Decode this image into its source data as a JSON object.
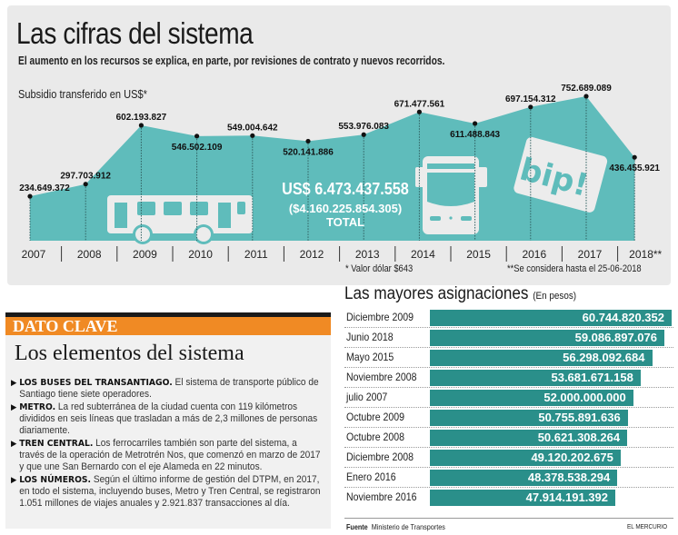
{
  "header": {
    "title": "Las cifras del sistema",
    "subtitle": "El aumento en los recursos se explica, en parte, por revisiones de contrato y nuevos recorridos."
  },
  "chart_data": [
    {
      "type": "area",
      "title": "Subsidio transferido en US$*",
      "xlabel": "",
      "ylabel": "US$",
      "categories": [
        "2007",
        "2008",
        "2009",
        "2010",
        "2011",
        "2012",
        "2013",
        "2014",
        "2015",
        "2016",
        "2017",
        "2018**"
      ],
      "values": [
        234649372,
        297703912,
        602193827,
        546502109,
        549004642,
        520141886,
        553976083,
        671477561,
        611488843,
        697154312,
        752689089,
        436455921
      ],
      "value_labels": [
        "234.649.372",
        "297.703.912",
        "602.193.827",
        "546.502.109",
        "549.004.642",
        "520.141.886",
        "553.976.083",
        "671.477.561",
        "611.488.843",
        "697.154.312",
        "752.689.089",
        "436.455.921"
      ],
      "series_color": "#5fbcbb",
      "grid": false,
      "total": {
        "usd": "US$ 6.473.437.558",
        "clp": "($4.160.225.854.305)",
        "label": "TOTAL"
      },
      "footnotes": [
        "* Valor dólar $643",
        "**Se considera hasta el 25-06-2018"
      ],
      "icons": [
        "bus-side-icon",
        "bus-front-icon",
        "bip-card-icon"
      ],
      "bip_card_text": "bip!"
    },
    {
      "type": "bar",
      "title": "Las mayores asignaciones",
      "title_note": "(En pesos)",
      "categories": [
        "Diciembre 2009",
        "Junio 2018",
        "Mayo 2015",
        "Noviembre 2008",
        "julio 2007",
        "Octubre 2009",
        "Octubre 2008",
        "Diciembre 2008",
        "Enero 2016",
        "Noviembre 2016"
      ],
      "values": [
        60744820352,
        59086897076,
        56298092684,
        53681671158,
        52000000000,
        50755891636,
        50621308264,
        49120202675,
        48378538294,
        47914191392
      ],
      "value_labels": [
        "60.744.820.352",
        "59.086.897.076",
        "56.298.092.684",
        "53.681.671.158",
        "52.000.000.000",
        "50.755.891.636",
        "50.621.308.264",
        "49.120.202.675",
        "48.378.538.294",
        "47.914.191.392"
      ],
      "orientation": "horizontal",
      "bar_color": "#2a8f8a",
      "xlim": [
        0,
        60744820352
      ]
    }
  ],
  "dato_clave": {
    "header": "DATO CLAVE",
    "title": "Los elementos del sistema",
    "items": [
      {
        "lead": "LOS BUSES DEL TRANSANTIAGO.",
        "text": " El sistema de transporte público de Santiago tiene siete operadores."
      },
      {
        "lead": "METRO.",
        "text": " La red subterránea de la ciudad cuenta con 119 kilómetros divididos en seis líneas que trasladan a más de 2,3 millones de personas diariamente."
      },
      {
        "lead": "TREN CENTRAL.",
        "text": " Los ferrocarriles también son parte del sistema, a través de la operación de Metrotrén Nos, que comenzó en marzo de 2017 y que une San Bernardo con el eje Alameda en 22 minutos."
      },
      {
        "lead": "LOS NÚMEROS.",
        "text": " Según el último informe de gestión del DTPM, en 2017, en todo el sistema, incluyendo buses, Metro y Tren Central, se registraron 1.051 millones de viajes anuales y 2.921.837 transacciones al día."
      }
    ]
  },
  "footer": {
    "source_label": "Fuente",
    "source": "Ministerio de Transportes",
    "brand": "EL MERCURIO"
  },
  "colors": {
    "area": "#5fbcbb",
    "bar": "#2a8f8a",
    "accent_orange": "#f08a24",
    "panel": "#eaeaea"
  }
}
